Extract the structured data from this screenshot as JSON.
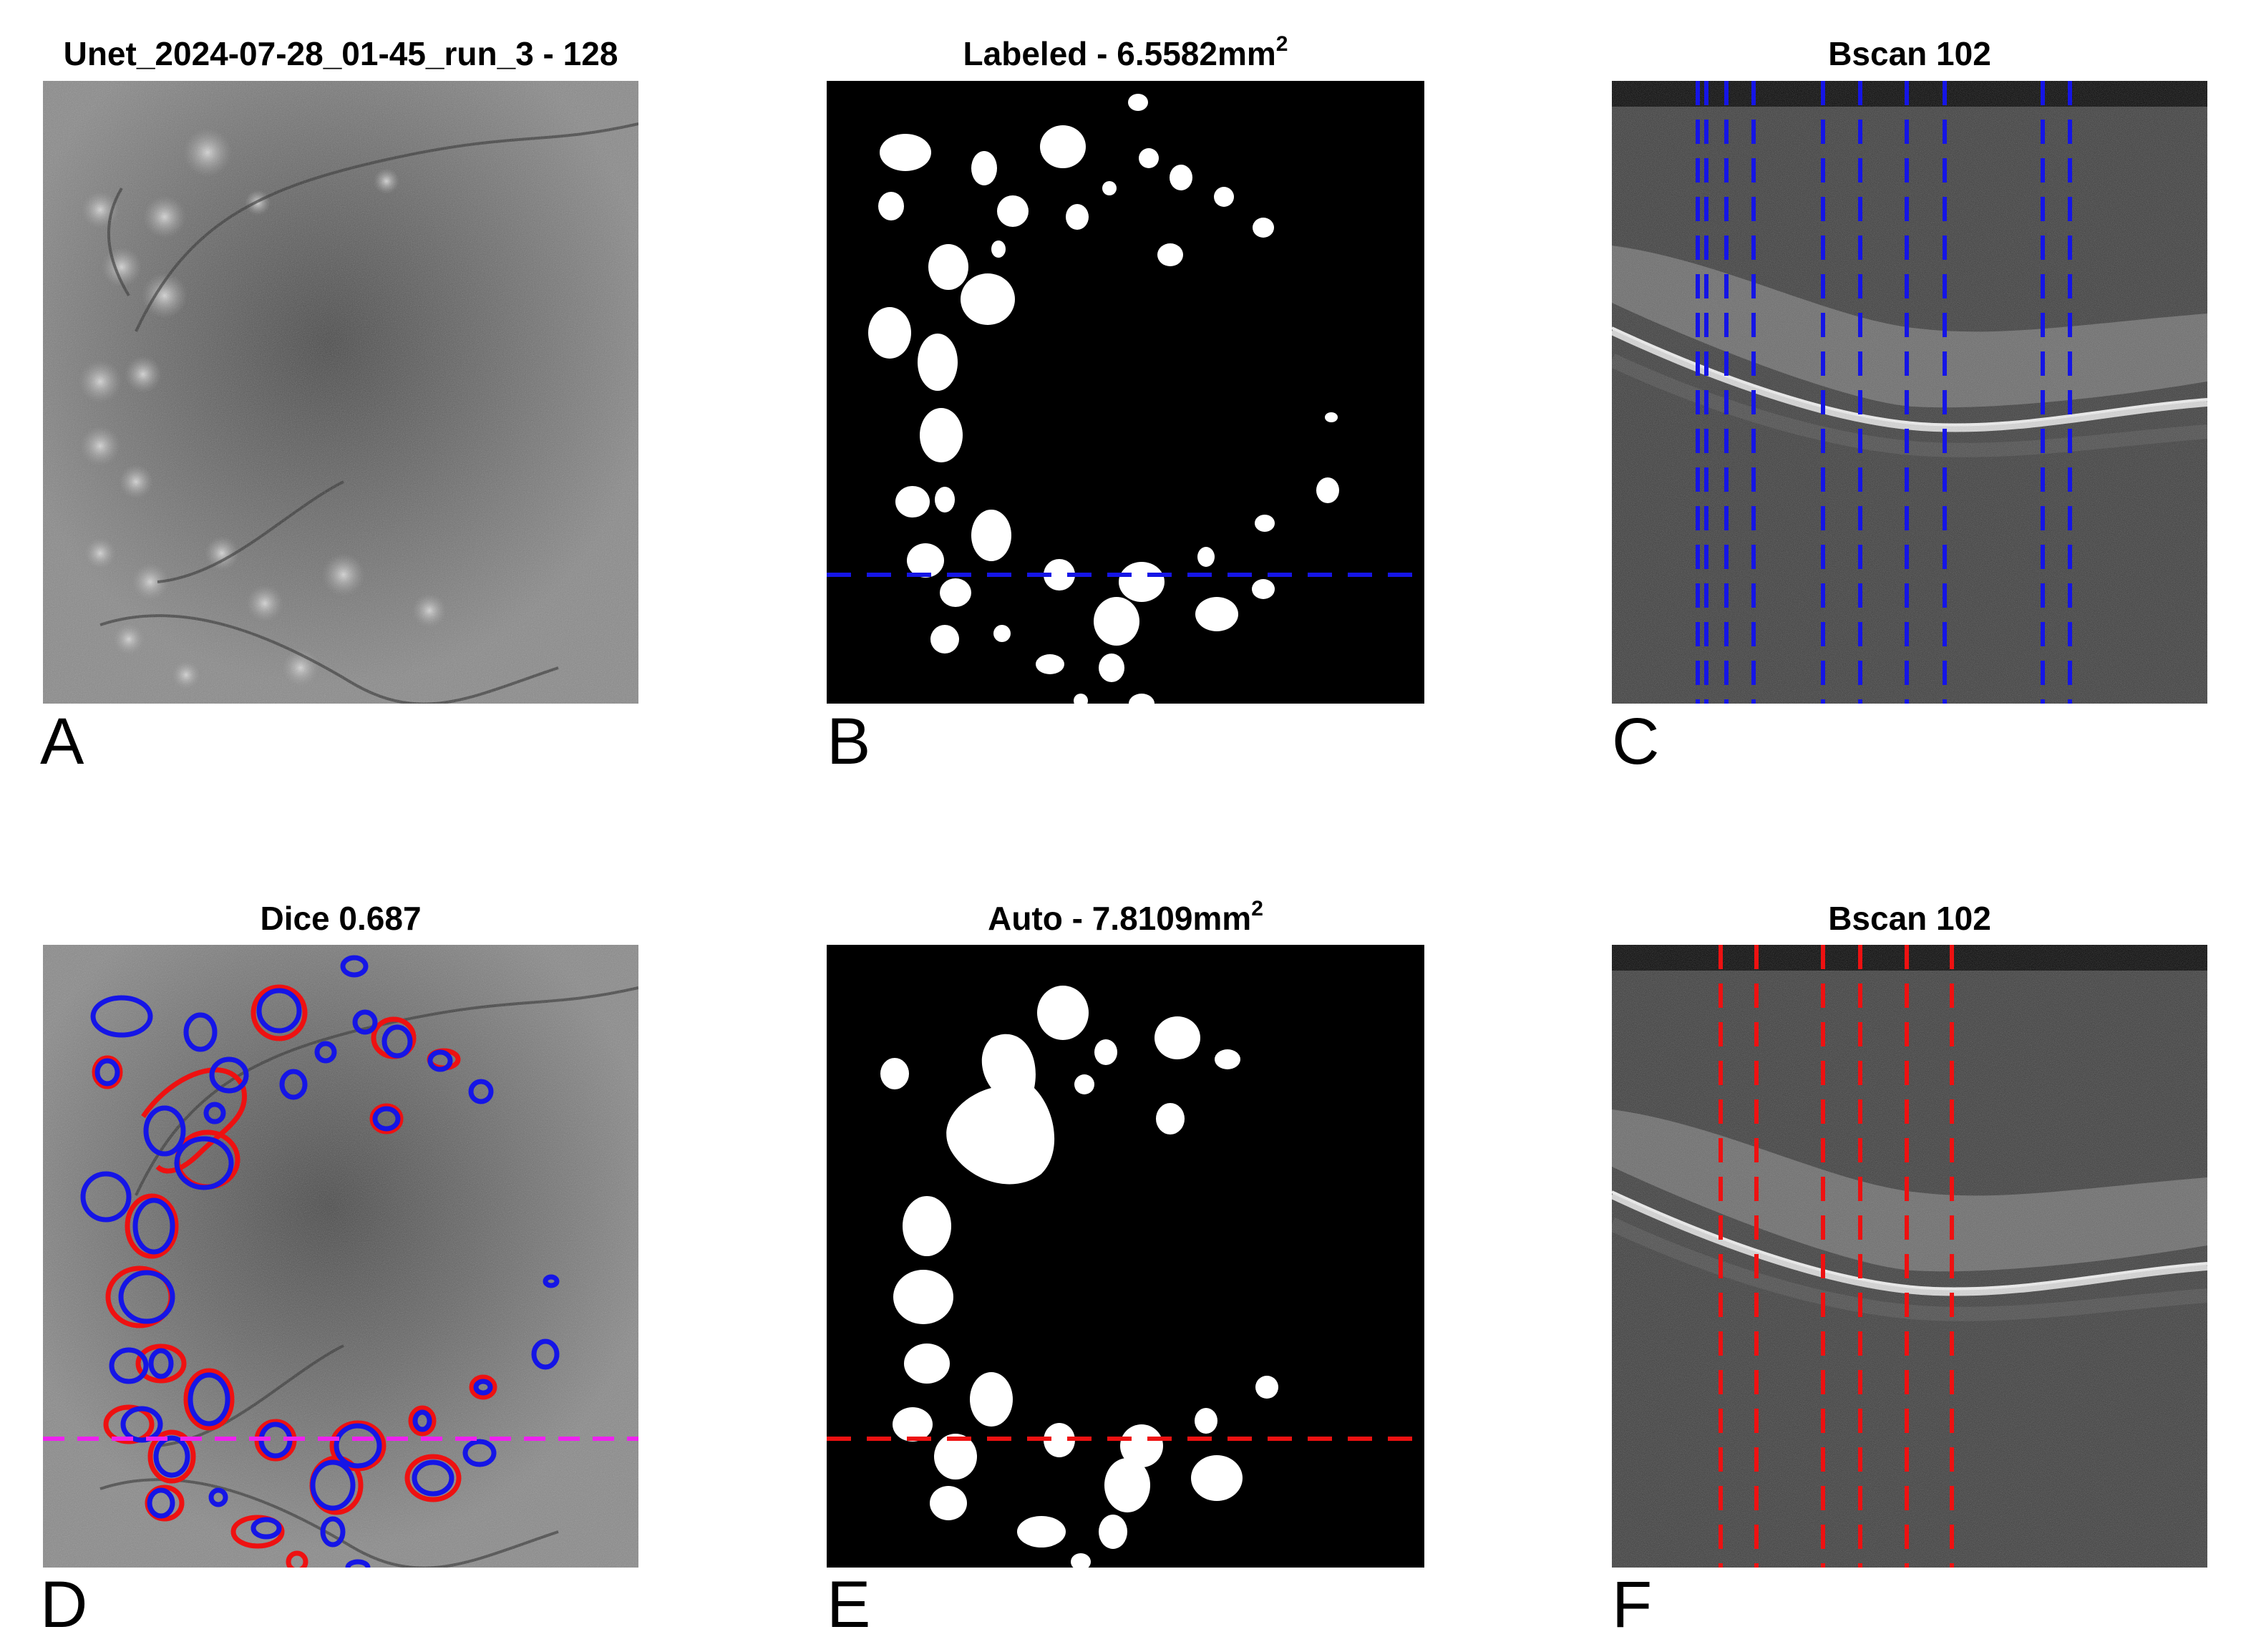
{
  "panels": {
    "a": {
      "title": "Unet_2024-07-28_01-45_run_3 - 128",
      "letter": "A"
    },
    "b": {
      "title_main": "Labeled - 6.5582mm",
      "title_sup": "2",
      "letter": "B"
    },
    "c": {
      "title": "Bscan 102",
      "letter": "C"
    },
    "d": {
      "title": "Dice 0.687",
      "letter": "D"
    },
    "e": {
      "title_main": "Auto - 7.8109mm",
      "title_sup": "2",
      "letter": "E"
    },
    "f": {
      "title": "Bscan 102",
      "letter": "F"
    }
  },
  "colors": {
    "labeled": "#1515e6",
    "auto": "#ee1111",
    "scan_line_d": "#ee22ee",
    "mask_bg": "#000000",
    "mask_fg": "#ffffff"
  }
}
